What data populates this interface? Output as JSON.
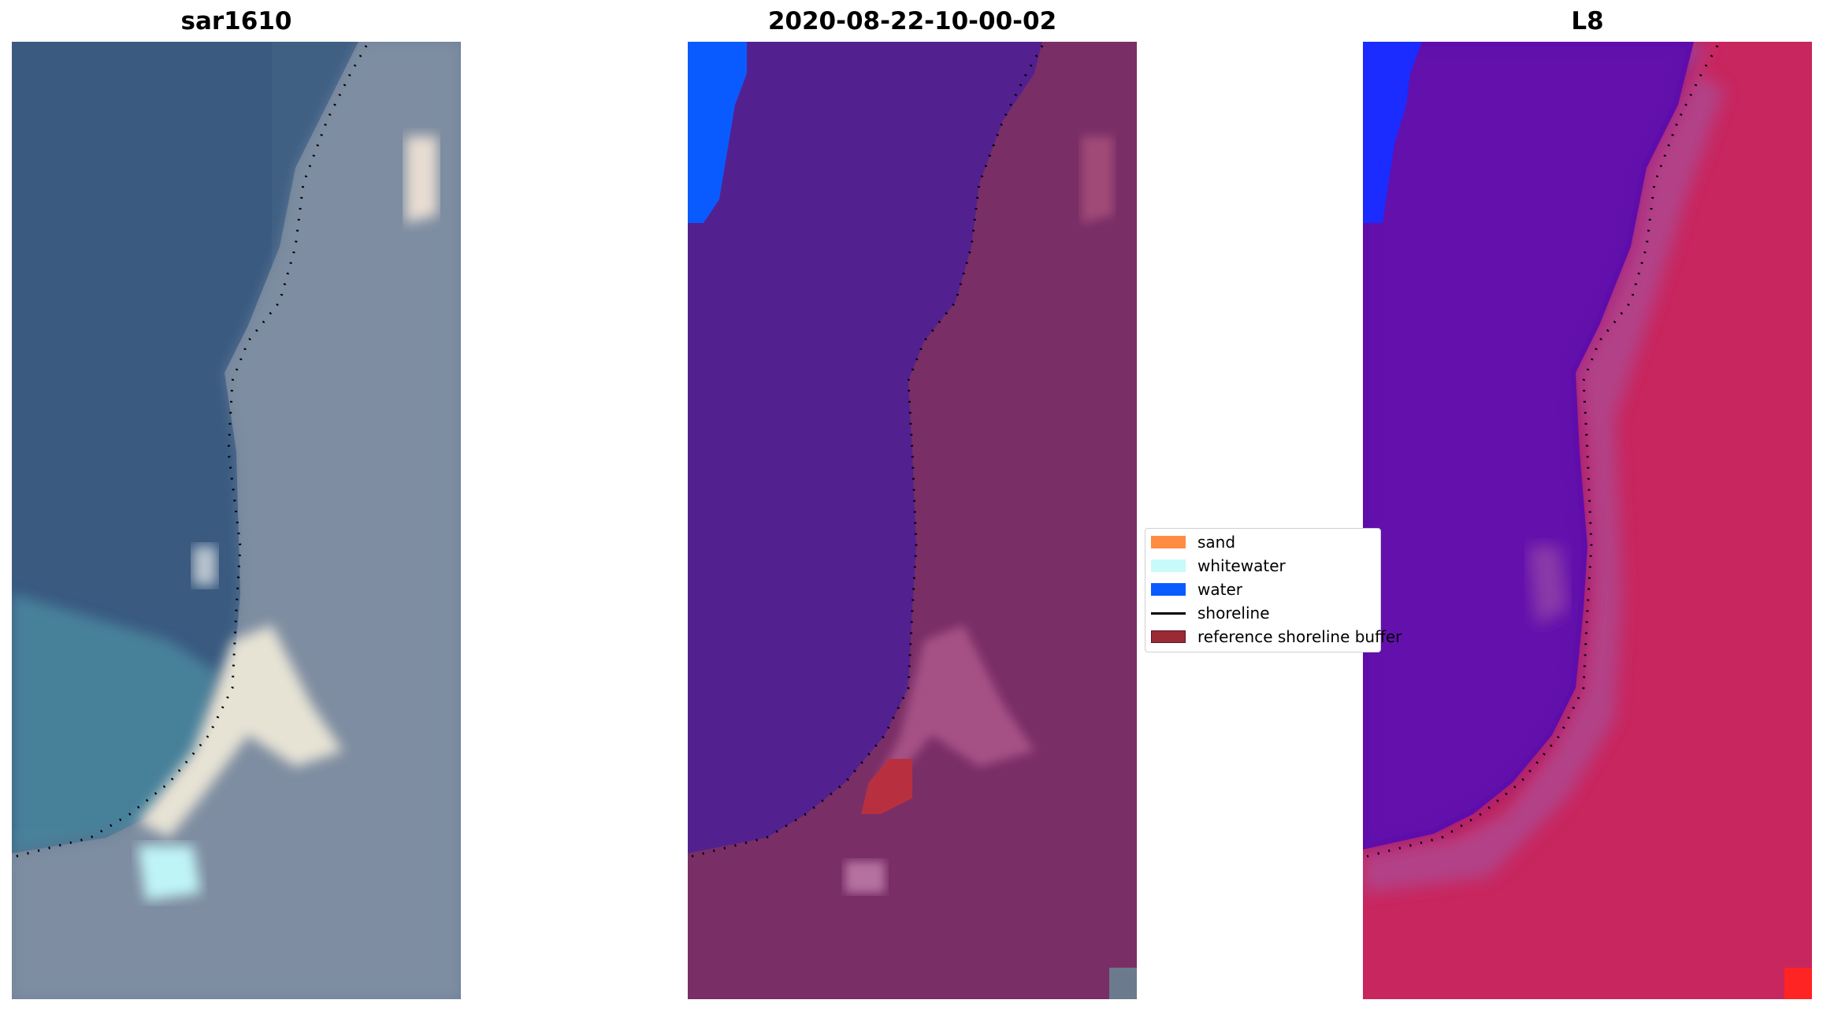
{
  "panels": [
    {
      "title": "sar1610"
    },
    {
      "title": "2020-08-22-10-00-02"
    },
    {
      "title": "L8"
    }
  ],
  "legend": {
    "items": [
      {
        "label": "sand",
        "kind": "patch",
        "color": "#ff8c42"
      },
      {
        "label": "whitewater",
        "kind": "patch",
        "color": "#c8fafa"
      },
      {
        "label": "water",
        "kind": "patch",
        "color": "#0a5bff"
      },
      {
        "label": "shoreline",
        "kind": "line",
        "color": "#000000"
      },
      {
        "label": "reference shoreline buffer",
        "kind": "patch",
        "color": "#9a2a36"
      }
    ]
  }
}
